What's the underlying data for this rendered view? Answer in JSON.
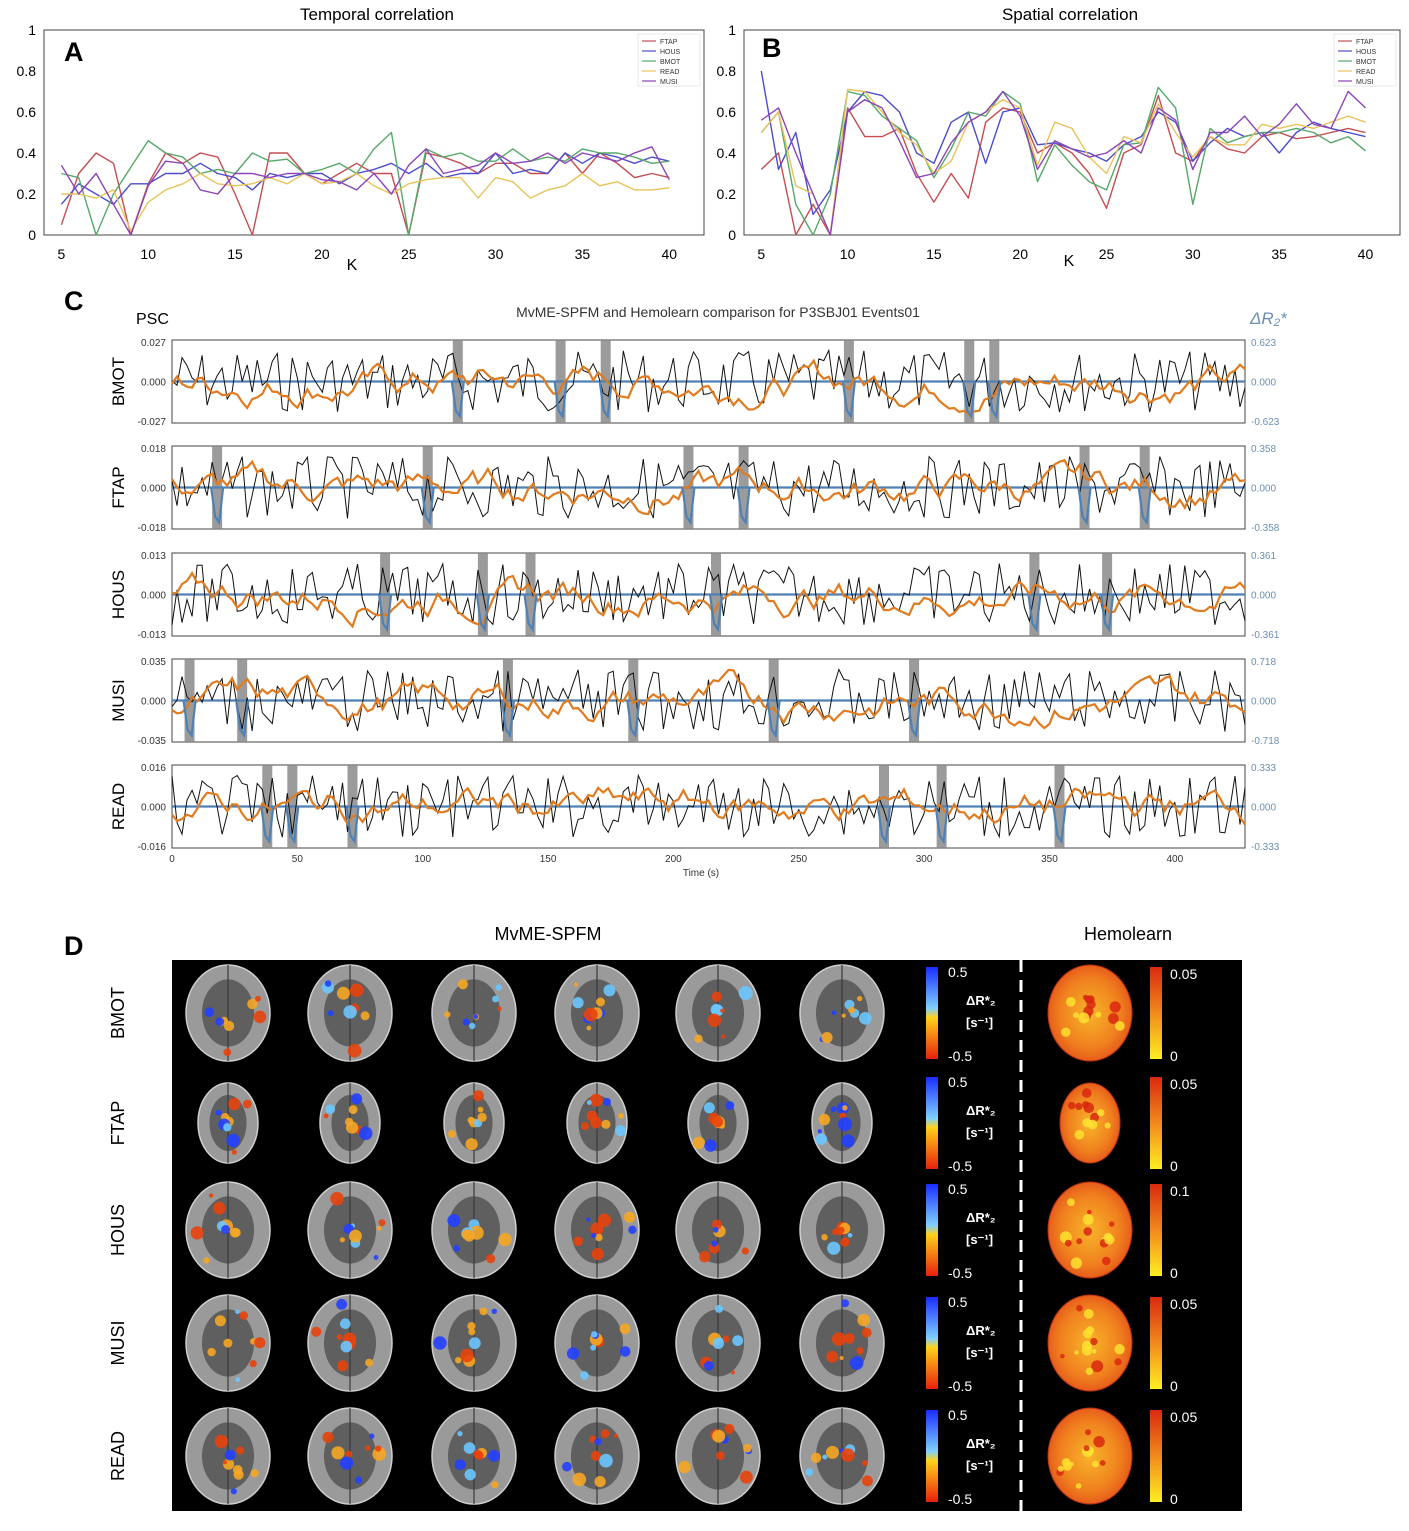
{
  "colors": {
    "FTAP": "#c44e52",
    "HOUS": "#4c4ccc",
    "BMOT": "#55a868",
    "READ": "#e8c35a",
    "MUSI": "#8c44b8",
    "psc": "#111111",
    "hemolearn": "#e07b1f",
    "mvme": "#4f81b5",
    "event": "#8a8a8a",
    "dr2_axis": "#6b8fb3",
    "brain_bg": "#000000"
  },
  "panels": {
    "A": {
      "letter": "A"
    },
    "B": {
      "letter": "B"
    },
    "C": {
      "letter": "C"
    },
    "D": {
      "letter": "D"
    }
  },
  "chart_data": [
    {
      "id": "A",
      "type": "line",
      "title": "Temporal correlation",
      "xlabel": "K",
      "ylabel": "",
      "xlim": [
        4,
        42
      ],
      "ylim": [
        0,
        1
      ],
      "xticks": [
        5,
        10,
        15,
        20,
        25,
        30,
        35,
        40
      ],
      "yticks": [
        0,
        0.2,
        0.4,
        0.6,
        0.8,
        1
      ],
      "ytick_labels": [
        "0",
        "0.2",
        "0.4",
        "0.6",
        "0.8",
        "1"
      ],
      "legend_position": "top-right",
      "x": [
        5,
        6,
        7,
        8,
        9,
        10,
        11,
        12,
        13,
        14,
        15,
        16,
        17,
        18,
        19,
        20,
        21,
        22,
        23,
        24,
        25,
        26,
        27,
        28,
        29,
        30,
        31,
        32,
        33,
        34,
        35,
        36,
        37,
        38,
        39,
        40
      ],
      "series": [
        {
          "name": "FTAP",
          "values": [
            0.05,
            0.3,
            0.4,
            0.35,
            0.0,
            0.25,
            0.4,
            0.35,
            0.4,
            0.38,
            0.2,
            0.0,
            0.4,
            0.4,
            0.3,
            0.25,
            0.3,
            0.35,
            0.3,
            0.3,
            0.0,
            0.4,
            0.38,
            0.35,
            0.3,
            0.35,
            0.35,
            0.3,
            0.3,
            0.4,
            0.3,
            0.4,
            0.35,
            0.28,
            0.3,
            0.28
          ]
        },
        {
          "name": "HOUS",
          "values": [
            0.15,
            0.25,
            0.2,
            0.15,
            0.25,
            0.25,
            0.3,
            0.3,
            0.35,
            0.3,
            0.28,
            0.22,
            0.3,
            0.28,
            0.3,
            0.3,
            0.25,
            0.3,
            0.32,
            0.35,
            0.3,
            0.35,
            0.28,
            0.3,
            0.3,
            0.4,
            0.3,
            0.32,
            0.3,
            0.4,
            0.35,
            0.4,
            0.38,
            0.35,
            0.38,
            0.36
          ]
        },
        {
          "name": "BMOT",
          "values": [
            0.3,
            0.28,
            0.0,
            0.2,
            0.33,
            0.46,
            0.4,
            0.38,
            0.3,
            0.32,
            0.3,
            0.4,
            0.36,
            0.37,
            0.3,
            0.32,
            0.35,
            0.3,
            0.42,
            0.5,
            0.0,
            0.42,
            0.38,
            0.4,
            0.36,
            0.36,
            0.42,
            0.36,
            0.38,
            0.36,
            0.42,
            0.4,
            0.4,
            0.38,
            0.35,
            0.36
          ]
        },
        {
          "name": "READ",
          "values": [
            0.2,
            0.2,
            0.18,
            0.22,
            0.02,
            0.16,
            0.22,
            0.25,
            0.3,
            0.25,
            0.24,
            0.25,
            0.28,
            0.25,
            0.3,
            0.25,
            0.26,
            0.3,
            0.24,
            0.2,
            0.25,
            0.27,
            0.28,
            0.28,
            0.18,
            0.28,
            0.26,
            0.18,
            0.22,
            0.24,
            0.3,
            0.24,
            0.26,
            0.22,
            0.22,
            0.23
          ]
        },
        {
          "name": "MUSI",
          "values": [
            0.34,
            0.2,
            0.3,
            0.15,
            0.0,
            0.24,
            0.36,
            0.35,
            0.22,
            0.2,
            0.3,
            0.3,
            0.28,
            0.3,
            0.3,
            0.27,
            0.26,
            0.22,
            0.3,
            0.2,
            0.34,
            0.42,
            0.3,
            0.32,
            0.34,
            0.4,
            0.35,
            0.36,
            0.4,
            0.35,
            0.4,
            0.38,
            0.36,
            0.4,
            0.43,
            0.27
          ]
        }
      ]
    },
    {
      "id": "B",
      "type": "line",
      "title": "Spatial correlation",
      "xlabel": "K",
      "ylabel": "",
      "xlim": [
        4,
        42
      ],
      "ylim": [
        0,
        1
      ],
      "xticks": [
        5,
        10,
        15,
        20,
        25,
        30,
        35,
        40
      ],
      "yticks": [
        0,
        0.2,
        0.4,
        0.6,
        0.8,
        1
      ],
      "ytick_labels": [
        "0",
        "0.2",
        "0.4",
        "0.6",
        "0.8",
        "1"
      ],
      "legend_position": "top-right",
      "x": [
        5,
        6,
        7,
        8,
        9,
        10,
        11,
        12,
        13,
        14,
        15,
        16,
        17,
        18,
        19,
        20,
        21,
        22,
        23,
        24,
        25,
        26,
        27,
        28,
        29,
        30,
        31,
        32,
        33,
        34,
        35,
        36,
        37,
        38,
        39,
        40
      ],
      "series": [
        {
          "name": "FTAP",
          "values": [
            0.32,
            0.4,
            0.0,
            0.15,
            0.0,
            0.62,
            0.48,
            0.48,
            0.52,
            0.3,
            0.16,
            0.3,
            0.18,
            0.55,
            0.62,
            0.6,
            0.4,
            0.45,
            0.4,
            0.3,
            0.13,
            0.4,
            0.44,
            0.68,
            0.4,
            0.36,
            0.48,
            0.42,
            0.4,
            0.48,
            0.5,
            0.47,
            0.48,
            0.5,
            0.52,
            0.5
          ]
        },
        {
          "name": "HOUS",
          "values": [
            0.8,
            0.32,
            0.5,
            0.1,
            0.22,
            0.6,
            0.7,
            0.68,
            0.6,
            0.4,
            0.35,
            0.55,
            0.6,
            0.35,
            0.6,
            0.62,
            0.44,
            0.45,
            0.42,
            0.4,
            0.36,
            0.44,
            0.48,
            0.6,
            0.55,
            0.36,
            0.45,
            0.52,
            0.48,
            0.5,
            0.4,
            0.5,
            0.55,
            0.52,
            0.5,
            0.48
          ]
        },
        {
          "name": "BMOT",
          "values": [
            0.5,
            0.6,
            0.15,
            0.0,
            0.2,
            0.7,
            0.68,
            0.58,
            0.52,
            0.46,
            0.28,
            0.42,
            0.6,
            0.58,
            0.7,
            0.64,
            0.26,
            0.44,
            0.34,
            0.26,
            0.22,
            0.44,
            0.45,
            0.72,
            0.62,
            0.15,
            0.52,
            0.45,
            0.48,
            0.5,
            0.5,
            0.52,
            0.5,
            0.45,
            0.48,
            0.41
          ]
        },
        {
          "name": "READ",
          "values": [
            0.5,
            0.6,
            0.24,
            0.2,
            0.0,
            0.71,
            0.7,
            0.6,
            0.5,
            0.44,
            0.3,
            0.36,
            0.55,
            0.6,
            0.66,
            0.62,
            0.34,
            0.55,
            0.52,
            0.38,
            0.3,
            0.48,
            0.45,
            0.64,
            0.5,
            0.38,
            0.48,
            0.44,
            0.44,
            0.54,
            0.52,
            0.54,
            0.52,
            0.55,
            0.58,
            0.55
          ]
        },
        {
          "name": "MUSI",
          "values": [
            0.56,
            0.62,
            0.4,
            0.2,
            0.0,
            0.6,
            0.66,
            0.62,
            0.46,
            0.28,
            0.3,
            0.45,
            0.55,
            0.6,
            0.7,
            0.58,
            0.32,
            0.46,
            0.42,
            0.38,
            0.4,
            0.46,
            0.4,
            0.62,
            0.56,
            0.32,
            0.5,
            0.5,
            0.58,
            0.48,
            0.54,
            0.64,
            0.54,
            0.52,
            0.7,
            0.62
          ]
        }
      ]
    },
    {
      "id": "C",
      "type": "line",
      "title": "MvME-SPFM and Hemolearn comparison for P3SBJ01 Events01",
      "xlabel": "Time (s)",
      "ylabel_left": "PSC",
      "ylabel_right": "ΔR₂*",
      "xlim": [
        0,
        428
      ],
      "xticks": [
        0,
        50,
        100,
        150,
        200,
        250,
        300,
        350,
        400
      ],
      "legend_position": "none",
      "rows": [
        {
          "label": "BMOT",
          "psc_range": 0.027,
          "psc_ticks": [
            "0.027",
            "0.000",
            "-0.027"
          ],
          "dr2_range": 0.623,
          "dr2_ticks": [
            "0.623",
            "0.000",
            "-0.623"
          ],
          "events": [
            114,
            155,
            173,
            270,
            318,
            328
          ]
        },
        {
          "label": "FTAP",
          "psc_range": 0.018,
          "psc_ticks": [
            "0.018",
            "0.000",
            "-0.018"
          ],
          "dr2_range": 0.358,
          "dr2_ticks": [
            "0.358",
            "0.000",
            "-0.358"
          ],
          "events": [
            18,
            102,
            206,
            228,
            364,
            388
          ]
        },
        {
          "label": "HOUS",
          "psc_range": 0.013,
          "psc_ticks": [
            "0.013",
            "0.000",
            "-0.013"
          ],
          "dr2_range": 0.361,
          "dr2_ticks": [
            "0.361",
            "0.000",
            "-0.361"
          ],
          "events": [
            85,
            124,
            143,
            217,
            344,
            373
          ]
        },
        {
          "label": "MUSI",
          "psc_range": 0.035,
          "psc_ticks": [
            "0.035",
            "0.000",
            "-0.035"
          ],
          "dr2_range": 0.718,
          "dr2_ticks": [
            "0.718",
            "0.000",
            "-0.718"
          ],
          "events": [
            7,
            28,
            134,
            184,
            240,
            296
          ]
        },
        {
          "label": "READ",
          "psc_range": 0.016,
          "psc_ticks": [
            "0.016",
            "0.000",
            "-0.016"
          ],
          "dr2_range": 0.333,
          "dr2_ticks": [
            "0.333",
            "0.000",
            "-0.333"
          ],
          "events": [
            38,
            48,
            72,
            284,
            307,
            354
          ]
        }
      ]
    }
  ],
  "panel_d": {
    "title_left": "MvME-SPFM",
    "title_right": "Hemolearn",
    "rows": [
      {
        "label": "BMOT",
        "dr2_max": "0.5",
        "dr2_min": "-0.5",
        "hl_max": "0.05",
        "hl_min": "0"
      },
      {
        "label": "FTAP",
        "dr2_max": "0.5",
        "dr2_min": "-0.5",
        "hl_max": "0.05",
        "hl_min": "0"
      },
      {
        "label": "HOUS",
        "dr2_max": "0.5",
        "dr2_min": "-0.5",
        "hl_max": "0.1",
        "hl_min": "0"
      },
      {
        "label": "MUSI",
        "dr2_max": "0.5",
        "dr2_min": "-0.5",
        "hl_max": "0.05",
        "hl_min": "0"
      },
      {
        "label": "READ",
        "dr2_max": "0.5",
        "dr2_min": "-0.5",
        "hl_max": "0.05",
        "hl_min": "0"
      }
    ],
    "colorbar_label_main": "ΔR*₂",
    "colorbar_label_unit": "[s⁻¹]"
  }
}
